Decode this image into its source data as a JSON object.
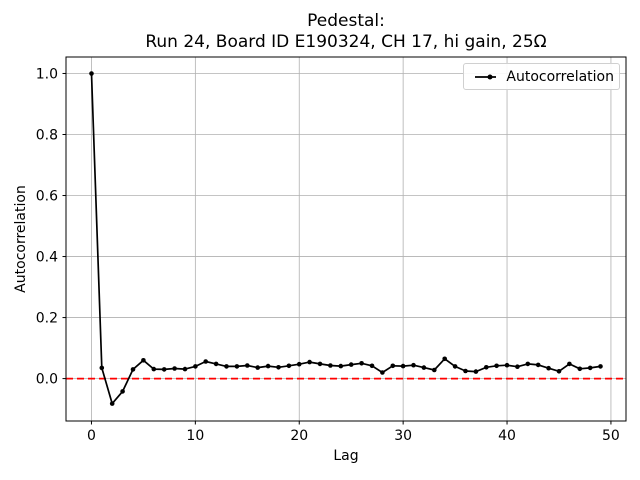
{
  "chart_data": {
    "type": "line",
    "title": "Pedestal:\nRun 24, Board ID E190324, CH 17, hi gain, 25Ω",
    "title_line1": "Pedestal:",
    "title_line2": "Run 24, Board ID E190324, CH 17, hi gain, 25Ω",
    "xlabel": "Lag",
    "ylabel": "Autocorrelation",
    "legend": [
      "Autocorrelation"
    ],
    "legend_position": "upper right",
    "grid": true,
    "x": [
      0,
      1,
      2,
      3,
      4,
      5,
      6,
      7,
      8,
      9,
      10,
      11,
      12,
      13,
      14,
      15,
      16,
      17,
      18,
      19,
      20,
      21,
      22,
      23,
      24,
      25,
      26,
      27,
      28,
      29,
      30,
      31,
      32,
      33,
      34,
      35,
      36,
      37,
      38,
      39,
      40,
      41,
      42,
      43,
      44,
      45,
      46,
      47,
      48,
      49
    ],
    "series": [
      {
        "name": "Autocorrelation",
        "values": [
          1.0,
          0.035,
          -0.082,
          -0.042,
          0.03,
          0.06,
          0.031,
          0.03,
          0.033,
          0.031,
          0.04,
          0.056,
          0.048,
          0.04,
          0.04,
          0.043,
          0.036,
          0.041,
          0.037,
          0.042,
          0.047,
          0.054,
          0.048,
          0.043,
          0.041,
          0.046,
          0.05,
          0.042,
          0.02,
          0.042,
          0.041,
          0.044,
          0.036,
          0.028,
          0.065,
          0.04,
          0.025,
          0.023,
          0.037,
          0.042,
          0.044,
          0.039,
          0.048,
          0.045,
          0.034,
          0.024,
          0.048,
          0.032,
          0.035,
          0.04
        ]
      }
    ],
    "reference_line": {
      "y": 0.0,
      "style": "dashed",
      "color": "#ff0000"
    },
    "xlim": [
      -2.45,
      51.45
    ],
    "ylim": [
      -0.139,
      1.054
    ],
    "xticks": [
      0,
      10,
      20,
      30,
      40,
      50
    ],
    "yticks": [
      0.0,
      0.2,
      0.4,
      0.6,
      0.8,
      1.0
    ],
    "ytick_labels": [
      "0.0",
      "0.2",
      "0.4",
      "0.6",
      "0.8",
      "1.0"
    ],
    "colors": {
      "line": "#000000",
      "grid": "#b0b0b0",
      "zero_line": "#ff0000",
      "spine": "#000000"
    }
  }
}
